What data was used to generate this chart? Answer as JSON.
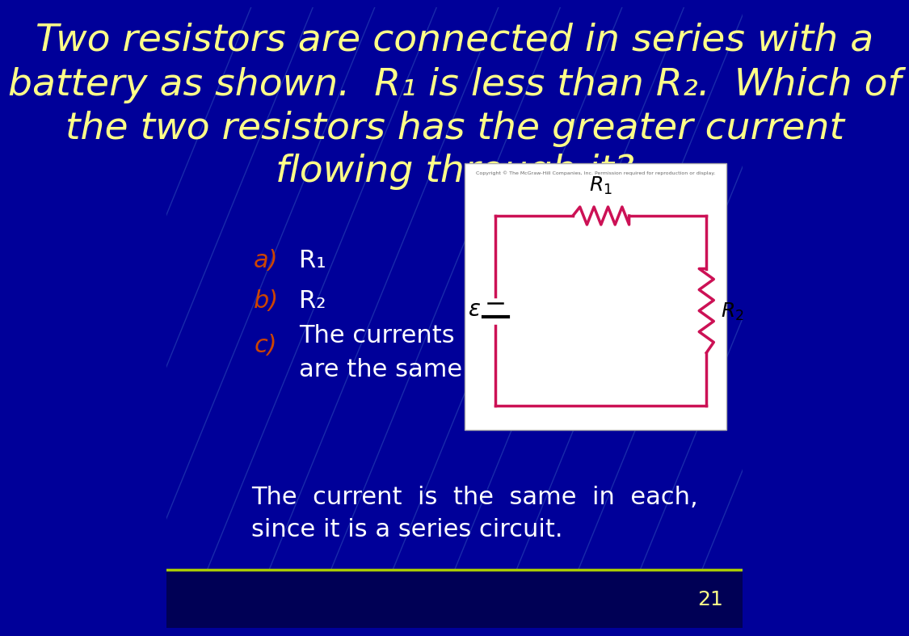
{
  "bg_color": "#000099",
  "title_lines": [
    "Two resistors are connected in series with a",
    "battery as shown.  R₁ is less than R₂.  Which of",
    "the two resistors has the greater current",
    "flowing through it?"
  ],
  "title_color": "#ffff88",
  "title_fontsize": 34,
  "options_label_color": "#cc4400",
  "options_text_color": "#ffffff",
  "options": [
    {
      "label": "a)",
      "text": "R₁"
    },
    {
      "label": "b)",
      "text": "R₂"
    },
    {
      "label": "c)",
      "text": "The currents\nare the same"
    }
  ],
  "answer_color": "#ffffff",
  "answer_text": "The  current  is  the  same  in  each,\nsince it is a series circuit.",
  "page_number": "21",
  "page_color": "#ffff88",
  "circuit_color": "#cc1155",
  "circuit_bg": "#ffffff",
  "separator_color": "#aacc00",
  "bottom_bar_color": "#000055"
}
